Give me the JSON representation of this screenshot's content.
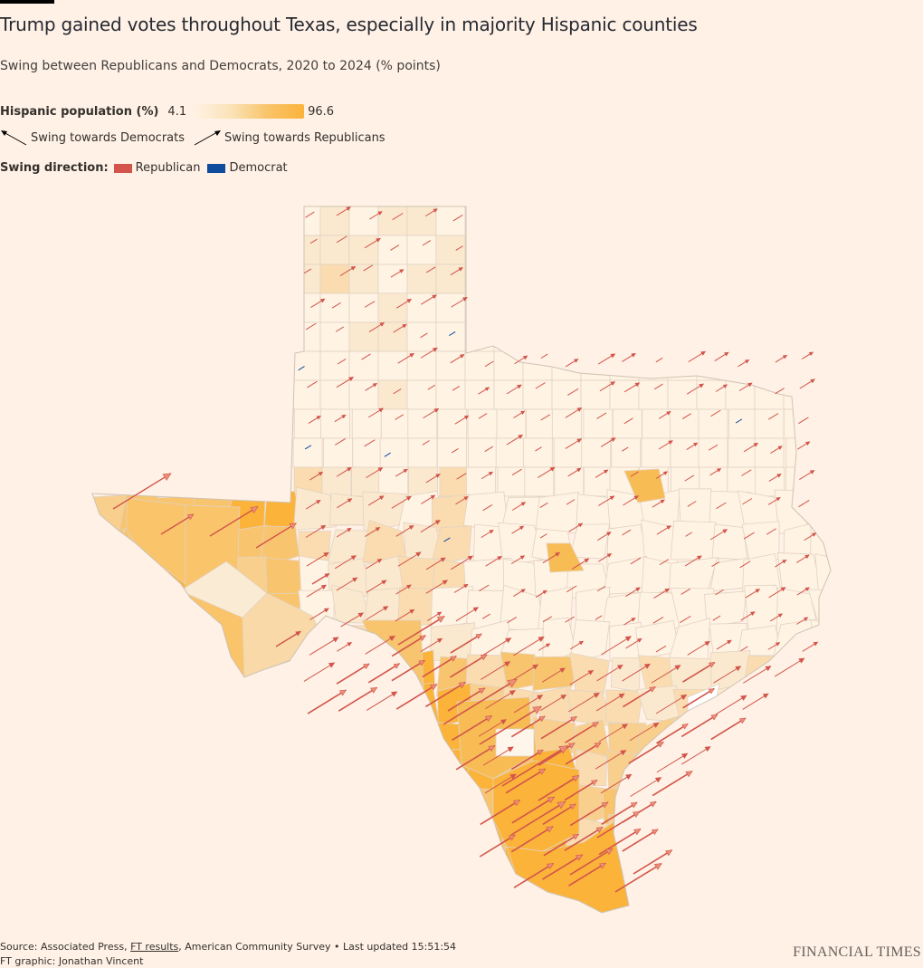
{
  "title": "Trump gained votes throughout Texas, especially in majority Hispanic counties",
  "subtitle": "Swing between Republicans and Democrats, 2020 to 2024 (% points)",
  "legend": {
    "hispanic_label": "Hispanic population (%)",
    "hispanic_min": "4.1",
    "hispanic_max": "96.6",
    "dem_arrow_label": "Swing towards Democrats",
    "rep_arrow_label": "Swing towards Republicans",
    "direction_label": "Swing direction:",
    "republican_label": "Republican",
    "democrat_label": "Democrat"
  },
  "colors": {
    "background": "#FFF1E5",
    "republican": "#D2544A",
    "democrat": "#0F4C9E",
    "hispanic_low": "#FFF1E5",
    "hispanic_high": "#FBB33A"
  },
  "footer": {
    "source_prefix": "Source: Associated Press,",
    "source_link": "FT results",
    "source_suffix": ", American Community Survey • Last updated 15:51:54",
    "credit": "FT graphic: Jonathan Vincent",
    "brand": "FINANCIAL TIMES"
  }
}
